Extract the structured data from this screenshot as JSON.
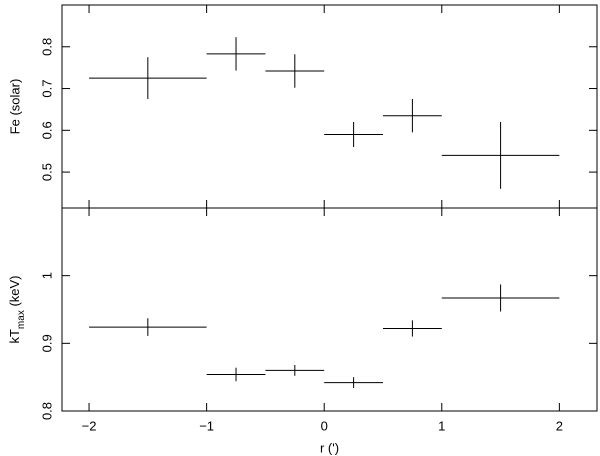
{
  "chart_data": [
    {
      "type": "errorbar",
      "ylabel": "Fe (solar)",
      "x": [
        -1.5,
        -0.75,
        -0.25,
        0.25,
        0.75,
        1.5
      ],
      "xerr": [
        0.5,
        0.25,
        0.25,
        0.25,
        0.25,
        0.5
      ],
      "values": [
        0.725,
        0.783,
        0.742,
        0.59,
        0.635,
        0.54
      ],
      "yerr": [
        0.05,
        0.04,
        0.04,
        0.03,
        0.04,
        0.08
      ],
      "color": "#000000",
      "xlim": [
        -2.23,
        2.32
      ],
      "xticks": [
        -2,
        -1,
        0,
        1,
        2
      ],
      "ylim": [
        0.414,
        0.9
      ],
      "yticks": [
        0.5,
        0.6,
        0.7,
        0.8
      ]
    },
    {
      "type": "errorbar",
      "ylabel": [
        "kT",
        "max",
        " (keV)"
      ],
      "xlabel": "r (')",
      "x": [
        -1.5,
        -0.75,
        -0.25,
        0.25,
        0.75,
        1.5
      ],
      "xerr": [
        0.5,
        0.25,
        0.25,
        0.25,
        0.25,
        0.5
      ],
      "values": [
        0.924,
        0.854,
        0.86,
        0.842,
        0.922,
        0.967
      ],
      "yerr": [
        0.013,
        0.01,
        0.008,
        0.008,
        0.012,
        0.02
      ],
      "color": "#000000",
      "xlim": [
        -2.23,
        2.32
      ],
      "xticks": [
        {
          "value": -2,
          "label": "−2"
        },
        {
          "value": -1,
          "label": "−1"
        },
        0,
        1,
        2
      ],
      "ylim": [
        0.8,
        1.1
      ],
      "yticks": [
        0.8,
        0.9,
        1
      ]
    }
  ]
}
